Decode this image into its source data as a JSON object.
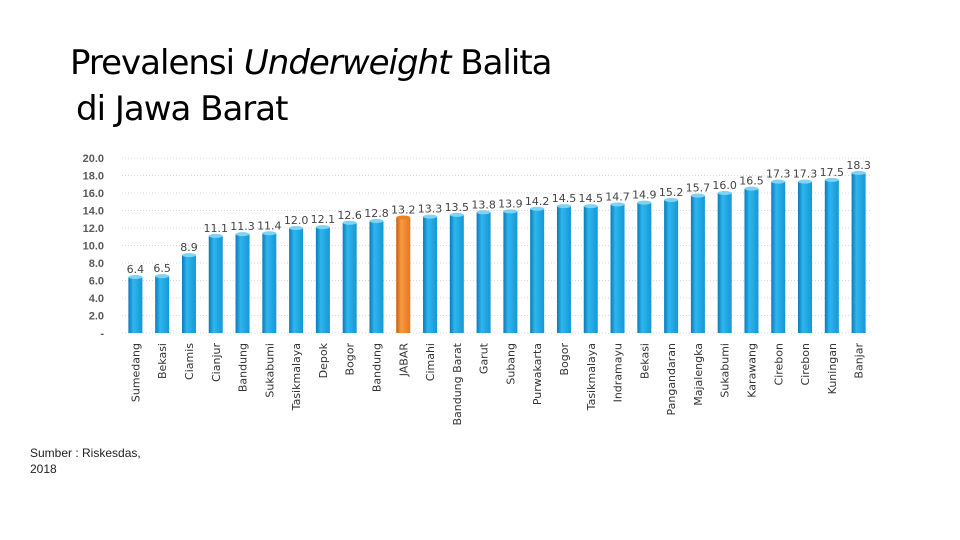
{
  "title": {
    "prefix": "Prevalensi ",
    "italic": "Underweight",
    "suffix": " Balita",
    "line2": "di Jawa Barat"
  },
  "source": "Sumber : Riskesdas, 2018",
  "chart_data": {
    "type": "bar",
    "categories": [
      "Sumedang",
      "Bekasi",
      "Ciamis",
      "Cianjur",
      "Bandung",
      "Sukabumi",
      "Tasikmalaya",
      "Depok",
      "Bogor",
      "Bandung",
      "JABAR",
      "Cimahi",
      "Bandung Barat",
      "Garut",
      "Subang",
      "Purwakarta",
      "Bogor",
      "Tasikmalaya",
      "Indramayu",
      "Bekasi",
      "Pangandaran",
      "Majalengka",
      "Sukabumi",
      "Karawang",
      "Cirebon",
      "Cirebon",
      "Kuningan",
      "Banjar"
    ],
    "values": [
      6.4,
      6.5,
      8.9,
      11.1,
      11.3,
      11.4,
      12.0,
      12.1,
      12.6,
      12.8,
      13.2,
      13.3,
      13.5,
      13.8,
      13.9,
      14.2,
      14.5,
      14.5,
      14.7,
      14.9,
      15.2,
      15.7,
      16.0,
      16.5,
      17.3,
      17.3,
      17.5,
      18.3
    ],
    "data_labels": [
      "6.4",
      "6.5",
      "8.9",
      "11.1",
      "11.3",
      "11.4",
      "12.0",
      "12.1",
      "12.6",
      "12.8",
      "13.2",
      "13.3",
      "13.5",
      "13.8",
      "13.9",
      "14.2",
      "14.5",
      "14.5",
      "14.7",
      "14.9",
      "15.2",
      "15.7",
      "16.0",
      "16.5",
      "17.3",
      "17.3",
      "17.5",
      "18.3"
    ],
    "highlight_index": 10,
    "y_ticks": [
      "-",
      "2.0",
      "4.0",
      "6.0",
      "8.0",
      "10.0",
      "12.0",
      "14.0",
      "16.0",
      "18.0",
      "20.0"
    ],
    "ylim": [
      0,
      20
    ],
    "grid": true,
    "colors": {
      "bar": "#1aa3de",
      "bar_dark": "#0b79b8",
      "highlight": "#f07f22",
      "highlight_dark": "#c55e10"
    }
  }
}
